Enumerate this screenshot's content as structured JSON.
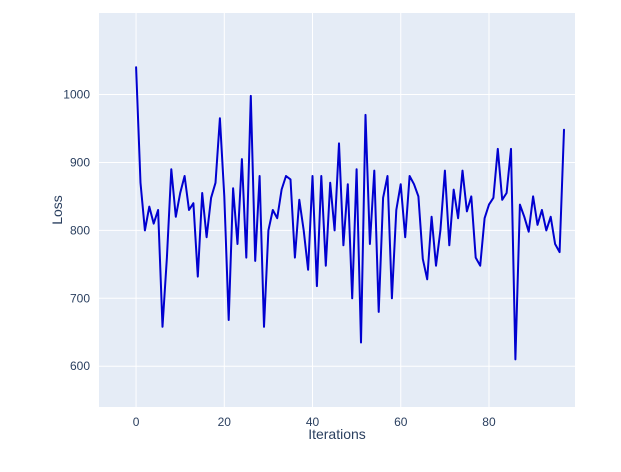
{
  "chart_data": {
    "type": "line",
    "title": "",
    "xlabel": "Iterations",
    "ylabel": "Loss",
    "x0": 0,
    "dx": 1,
    "values": [
      1040,
      870,
      800,
      835,
      810,
      830,
      658,
      760,
      890,
      820,
      855,
      880,
      830,
      840,
      732,
      855,
      790,
      848,
      870,
      965,
      850,
      668,
      862,
      780,
      905,
      760,
      998,
      755,
      880,
      658,
      800,
      830,
      818,
      860,
      880,
      875,
      760,
      845,
      800,
      742,
      880,
      718,
      880,
      748,
      870,
      800,
      928,
      778,
      868,
      700,
      890,
      635,
      970,
      780,
      888,
      680,
      848,
      880,
      700,
      830,
      868,
      790,
      880,
      868,
      850,
      758,
      728,
      820,
      748,
      800,
      888,
      778,
      860,
      818,
      888,
      828,
      850,
      760,
      748,
      818,
      838,
      848,
      920,
      845,
      855,
      920,
      610,
      838,
      820,
      798,
      850,
      808,
      830,
      800,
      820,
      780,
      768,
      948
    ],
    "xticks": [
      0,
      20,
      40,
      60,
      80
    ],
    "yticks": [
      600,
      700,
      800,
      900,
      1000
    ],
    "xlim": [
      -8.4,
      99.5
    ],
    "ylim": [
      540,
      1120
    ],
    "grid": true,
    "legend": "none",
    "colors": {
      "line": "#0000d0",
      "panel": "#e5ecf6",
      "grid": "#ffffff",
      "text": "#2a3f5f"
    }
  }
}
